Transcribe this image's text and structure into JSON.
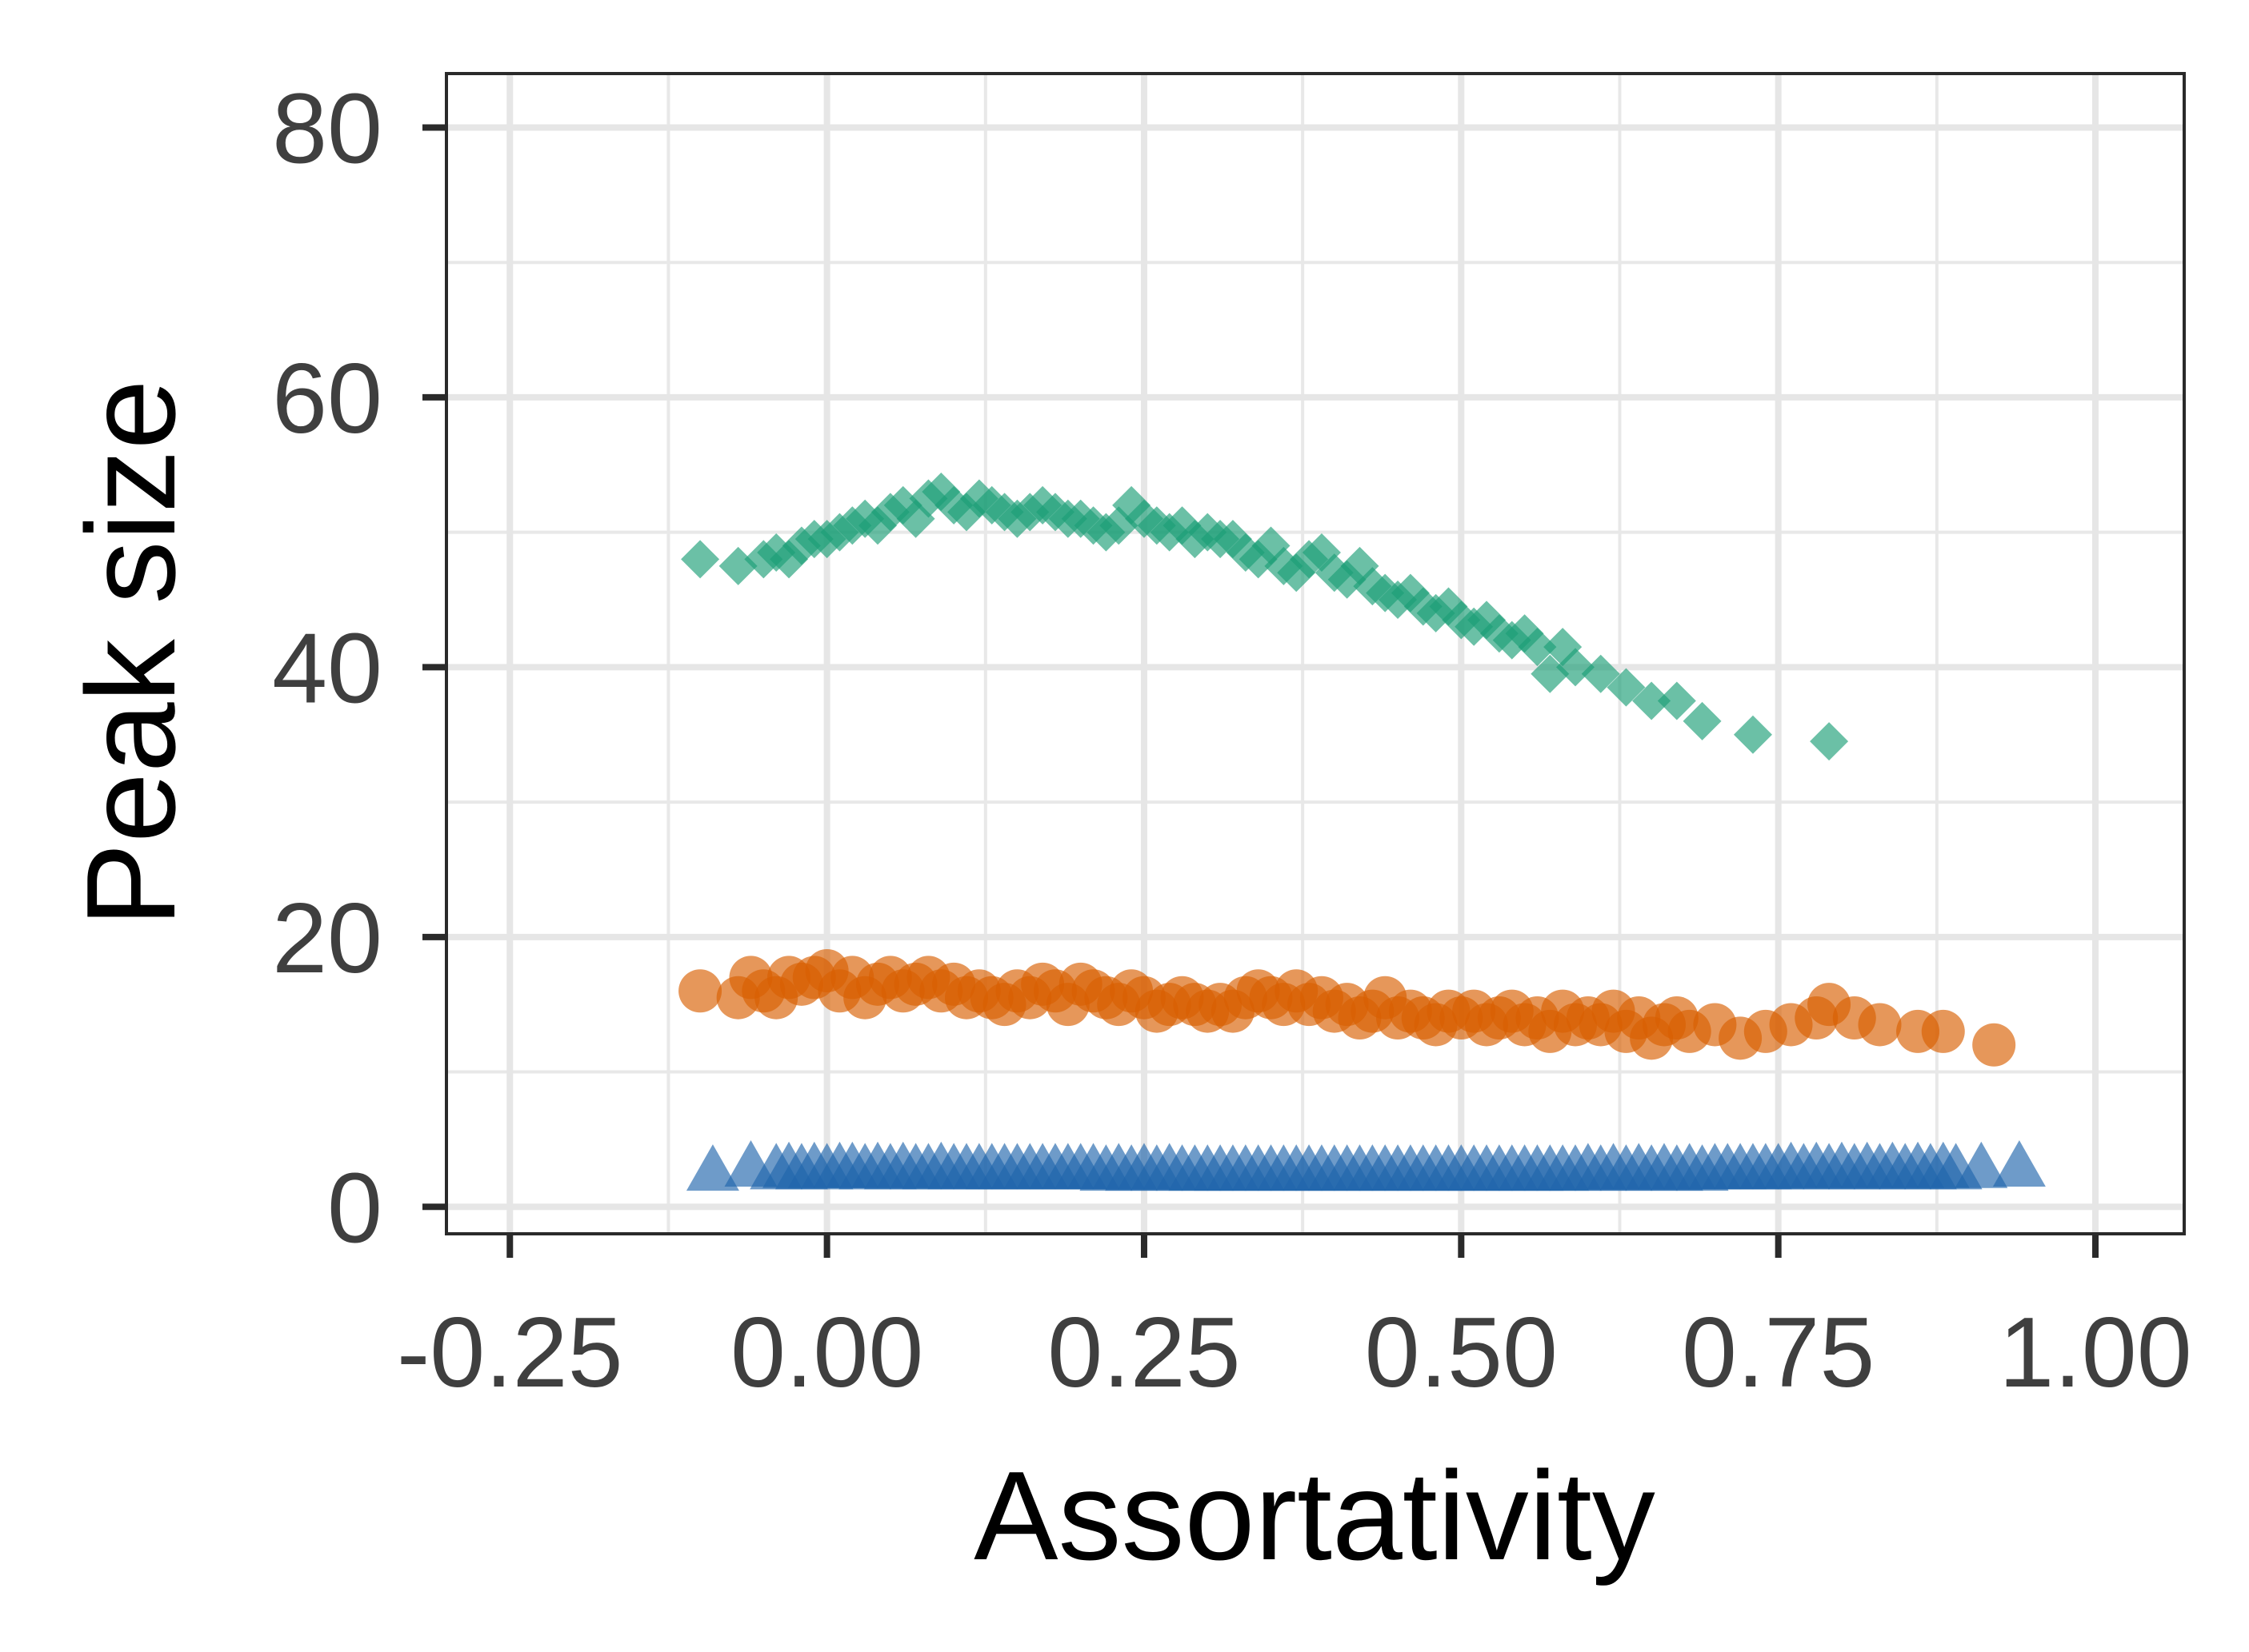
{
  "chart_data": {
    "type": "scatter",
    "title": "",
    "xlabel": "Assortativity",
    "ylabel": "Peak size",
    "xlim": [
      -0.3,
      1.07
    ],
    "ylim": [
      -2,
      84
    ],
    "xticks": [
      -0.25,
      0,
      0.25,
      0.5,
      0.75,
      1
    ],
    "xtick_labels": [
      "-0.25",
      "0.00",
      "0.25",
      "0.50",
      "0.75",
      "1.00"
    ],
    "yticks": [
      0,
      20,
      40,
      60,
      80
    ],
    "ytick_labels": [
      "0",
      "20",
      "40",
      "60",
      "80"
    ],
    "grid": true,
    "legend": "none",
    "series": [
      {
        "marker": "diamond",
        "color": "#1b9e77",
        "points": [
          [
            -0.1,
            48.0
          ],
          [
            -0.07,
            47.5
          ],
          [
            -0.05,
            48.0
          ],
          [
            -0.04,
            48.5
          ],
          [
            -0.03,
            48.0
          ],
          [
            -0.02,
            49.0
          ],
          [
            -0.01,
            49.5
          ],
          [
            0.0,
            49.5
          ],
          [
            0.01,
            50.0
          ],
          [
            0.02,
            50.5
          ],
          [
            0.03,
            51.0
          ],
          [
            0.04,
            50.5
          ],
          [
            0.05,
            51.5
          ],
          [
            0.06,
            52.0
          ],
          [
            0.07,
            51.0
          ],
          [
            0.08,
            52.5
          ],
          [
            0.09,
            53.0
          ],
          [
            0.1,
            52.0
          ],
          [
            0.11,
            51.5
          ],
          [
            0.12,
            52.5
          ],
          [
            0.13,
            52.0
          ],
          [
            0.14,
            51.5
          ],
          [
            0.15,
            51.0
          ],
          [
            0.16,
            51.5
          ],
          [
            0.17,
            52.0
          ],
          [
            0.18,
            51.5
          ],
          [
            0.19,
            51.0
          ],
          [
            0.2,
            51.0
          ],
          [
            0.21,
            50.5
          ],
          [
            0.22,
            50.0
          ],
          [
            0.23,
            50.5
          ],
          [
            0.24,
            52.0
          ],
          [
            0.25,
            51.0
          ],
          [
            0.26,
            50.5
          ],
          [
            0.27,
            50.0
          ],
          [
            0.28,
            50.5
          ],
          [
            0.29,
            49.5
          ],
          [
            0.3,
            50.0
          ],
          [
            0.31,
            49.5
          ],
          [
            0.32,
            49.5
          ],
          [
            0.33,
            48.5
          ],
          [
            0.34,
            48.0
          ],
          [
            0.35,
            49.0
          ],
          [
            0.36,
            47.5
          ],
          [
            0.37,
            47.0
          ],
          [
            0.38,
            48.0
          ],
          [
            0.39,
            48.5
          ],
          [
            0.4,
            47.0
          ],
          [
            0.41,
            46.5
          ],
          [
            0.42,
            47.5
          ],
          [
            0.43,
            46.0
          ],
          [
            0.44,
            45.5
          ],
          [
            0.45,
            45.0
          ],
          [
            0.46,
            45.5
          ],
          [
            0.47,
            44.5
          ],
          [
            0.48,
            44.0
          ],
          [
            0.49,
            44.5
          ],
          [
            0.5,
            43.5
          ],
          [
            0.51,
            43.0
          ],
          [
            0.52,
            43.5
          ],
          [
            0.53,
            42.5
          ],
          [
            0.54,
            42.0
          ],
          [
            0.55,
            42.5
          ],
          [
            0.56,
            41.5
          ],
          [
            0.57,
            39.5
          ],
          [
            0.58,
            41.5
          ],
          [
            0.59,
            40.0
          ],
          [
            0.61,
            39.5
          ],
          [
            0.63,
            38.5
          ],
          [
            0.65,
            37.5
          ],
          [
            0.67,
            37.5
          ],
          [
            0.69,
            36.0
          ],
          [
            0.73,
            35.0
          ],
          [
            0.79,
            34.5
          ]
        ]
      },
      {
        "marker": "circle",
        "color": "#d95f02",
        "points": [
          [
            -0.1,
            16.0
          ],
          [
            -0.07,
            15.5
          ],
          [
            -0.06,
            17.0
          ],
          [
            -0.05,
            16.0
          ],
          [
            -0.04,
            15.5
          ],
          [
            -0.03,
            17.0
          ],
          [
            -0.02,
            16.5
          ],
          [
            -0.01,
            17.0
          ],
          [
            0.0,
            17.5
          ],
          [
            0.01,
            16.0
          ],
          [
            0.02,
            17.0
          ],
          [
            0.03,
            15.5
          ],
          [
            0.04,
            16.5
          ],
          [
            0.05,
            17.0
          ],
          [
            0.06,
            16.0
          ],
          [
            0.07,
            16.5
          ],
          [
            0.08,
            17.0
          ],
          [
            0.09,
            16.0
          ],
          [
            0.1,
            16.5
          ],
          [
            0.11,
            15.5
          ],
          [
            0.12,
            16.0
          ],
          [
            0.13,
            15.5
          ],
          [
            0.14,
            15.0
          ],
          [
            0.15,
            16.0
          ],
          [
            0.16,
            15.5
          ],
          [
            0.17,
            16.5
          ],
          [
            0.18,
            16.0
          ],
          [
            0.19,
            15.0
          ],
          [
            0.2,
            16.5
          ],
          [
            0.21,
            16.0
          ],
          [
            0.22,
            15.5
          ],
          [
            0.23,
            15.0
          ],
          [
            0.24,
            16.0
          ],
          [
            0.25,
            15.5
          ],
          [
            0.26,
            14.5
          ],
          [
            0.27,
            15.0
          ],
          [
            0.28,
            15.5
          ],
          [
            0.29,
            15.0
          ],
          [
            0.3,
            14.5
          ],
          [
            0.31,
            15.0
          ],
          [
            0.32,
            14.5
          ],
          [
            0.33,
            15.5
          ],
          [
            0.34,
            16.0
          ],
          [
            0.35,
            15.5
          ],
          [
            0.36,
            15.0
          ],
          [
            0.37,
            16.0
          ],
          [
            0.38,
            15.0
          ],
          [
            0.39,
            15.5
          ],
          [
            0.4,
            14.5
          ],
          [
            0.41,
            15.0
          ],
          [
            0.42,
            14.0
          ],
          [
            0.43,
            14.5
          ],
          [
            0.44,
            15.5
          ],
          [
            0.45,
            14.0
          ],
          [
            0.46,
            14.5
          ],
          [
            0.47,
            14.0
          ],
          [
            0.48,
            13.5
          ],
          [
            0.49,
            14.5
          ],
          [
            0.5,
            14.0
          ],
          [
            0.51,
            14.5
          ],
          [
            0.52,
            13.5
          ],
          [
            0.53,
            14.0
          ],
          [
            0.54,
            14.5
          ],
          [
            0.55,
            13.5
          ],
          [
            0.56,
            14.0
          ],
          [
            0.57,
            13.0
          ],
          [
            0.58,
            14.5
          ],
          [
            0.59,
            13.5
          ],
          [
            0.6,
            14.0
          ],
          [
            0.61,
            13.5
          ],
          [
            0.62,
            14.5
          ],
          [
            0.63,
            13.0
          ],
          [
            0.64,
            14.0
          ],
          [
            0.65,
            12.5
          ],
          [
            0.66,
            13.5
          ],
          [
            0.67,
            14.0
          ],
          [
            0.68,
            13.0
          ],
          [
            0.7,
            13.5
          ],
          [
            0.72,
            12.5
          ],
          [
            0.74,
            13.0
          ],
          [
            0.76,
            13.5
          ],
          [
            0.78,
            14.0
          ],
          [
            0.79,
            15.0
          ],
          [
            0.81,
            14.0
          ],
          [
            0.83,
            13.5
          ],
          [
            0.86,
            13.0
          ],
          [
            0.88,
            13.0
          ],
          [
            0.92,
            12.0
          ]
        ]
      },
      {
        "marker": "triangle",
        "color": "#2166ac",
        "points": [
          [
            -0.09,
            2.5
          ],
          [
            -0.06,
            2.8
          ],
          [
            -0.04,
            2.6
          ],
          [
            -0.03,
            2.7
          ],
          [
            -0.02,
            2.6
          ],
          [
            -0.01,
            2.7
          ],
          [
            0.0,
            2.6
          ],
          [
            0.01,
            2.7
          ],
          [
            0.02,
            2.7
          ],
          [
            0.03,
            2.6
          ],
          [
            0.04,
            2.7
          ],
          [
            0.05,
            2.6
          ],
          [
            0.06,
            2.7
          ],
          [
            0.07,
            2.6
          ],
          [
            0.08,
            2.6
          ],
          [
            0.09,
            2.7
          ],
          [
            0.1,
            2.6
          ],
          [
            0.11,
            2.6
          ],
          [
            0.12,
            2.6
          ],
          [
            0.13,
            2.6
          ],
          [
            0.14,
            2.6
          ],
          [
            0.15,
            2.6
          ],
          [
            0.16,
            2.6
          ],
          [
            0.17,
            2.6
          ],
          [
            0.18,
            2.6
          ],
          [
            0.19,
            2.6
          ],
          [
            0.2,
            2.6
          ],
          [
            0.21,
            2.6
          ],
          [
            0.22,
            2.5
          ],
          [
            0.23,
            2.6
          ],
          [
            0.24,
            2.5
          ],
          [
            0.25,
            2.6
          ],
          [
            0.26,
            2.5
          ],
          [
            0.27,
            2.6
          ],
          [
            0.28,
            2.5
          ],
          [
            0.29,
            2.5
          ],
          [
            0.3,
            2.5
          ],
          [
            0.31,
            2.5
          ],
          [
            0.32,
            2.5
          ],
          [
            0.33,
            2.5
          ],
          [
            0.34,
            2.5
          ],
          [
            0.35,
            2.5
          ],
          [
            0.36,
            2.5
          ],
          [
            0.37,
            2.5
          ],
          [
            0.38,
            2.5
          ],
          [
            0.39,
            2.5
          ],
          [
            0.4,
            2.5
          ],
          [
            0.41,
            2.5
          ],
          [
            0.42,
            2.5
          ],
          [
            0.43,
            2.5
          ],
          [
            0.44,
            2.5
          ],
          [
            0.45,
            2.5
          ],
          [
            0.46,
            2.5
          ],
          [
            0.47,
            2.5
          ],
          [
            0.48,
            2.5
          ],
          [
            0.49,
            2.5
          ],
          [
            0.5,
            2.5
          ],
          [
            0.51,
            2.5
          ],
          [
            0.52,
            2.5
          ],
          [
            0.53,
            2.5
          ],
          [
            0.54,
            2.5
          ],
          [
            0.55,
            2.5
          ],
          [
            0.56,
            2.5
          ],
          [
            0.57,
            2.5
          ],
          [
            0.58,
            2.5
          ],
          [
            0.59,
            2.5
          ],
          [
            0.6,
            2.6
          ],
          [
            0.61,
            2.5
          ],
          [
            0.62,
            2.6
          ],
          [
            0.63,
            2.5
          ],
          [
            0.64,
            2.6
          ],
          [
            0.65,
            2.5
          ],
          [
            0.66,
            2.6
          ],
          [
            0.67,
            2.5
          ],
          [
            0.68,
            2.6
          ],
          [
            0.69,
            2.5
          ],
          [
            0.7,
            2.6
          ],
          [
            0.71,
            2.6
          ],
          [
            0.72,
            2.6
          ],
          [
            0.73,
            2.6
          ],
          [
            0.74,
            2.6
          ],
          [
            0.75,
            2.6
          ],
          [
            0.76,
            2.7
          ],
          [
            0.77,
            2.6
          ],
          [
            0.78,
            2.7
          ],
          [
            0.79,
            2.6
          ],
          [
            0.8,
            2.7
          ],
          [
            0.81,
            2.6
          ],
          [
            0.82,
            2.7
          ],
          [
            0.83,
            2.6
          ],
          [
            0.84,
            2.7
          ],
          [
            0.85,
            2.6
          ],
          [
            0.86,
            2.7
          ],
          [
            0.87,
            2.6
          ],
          [
            0.88,
            2.7
          ],
          [
            0.89,
            2.6
          ],
          [
            0.91,
            2.7
          ],
          [
            0.94,
            2.8
          ]
        ]
      }
    ]
  }
}
